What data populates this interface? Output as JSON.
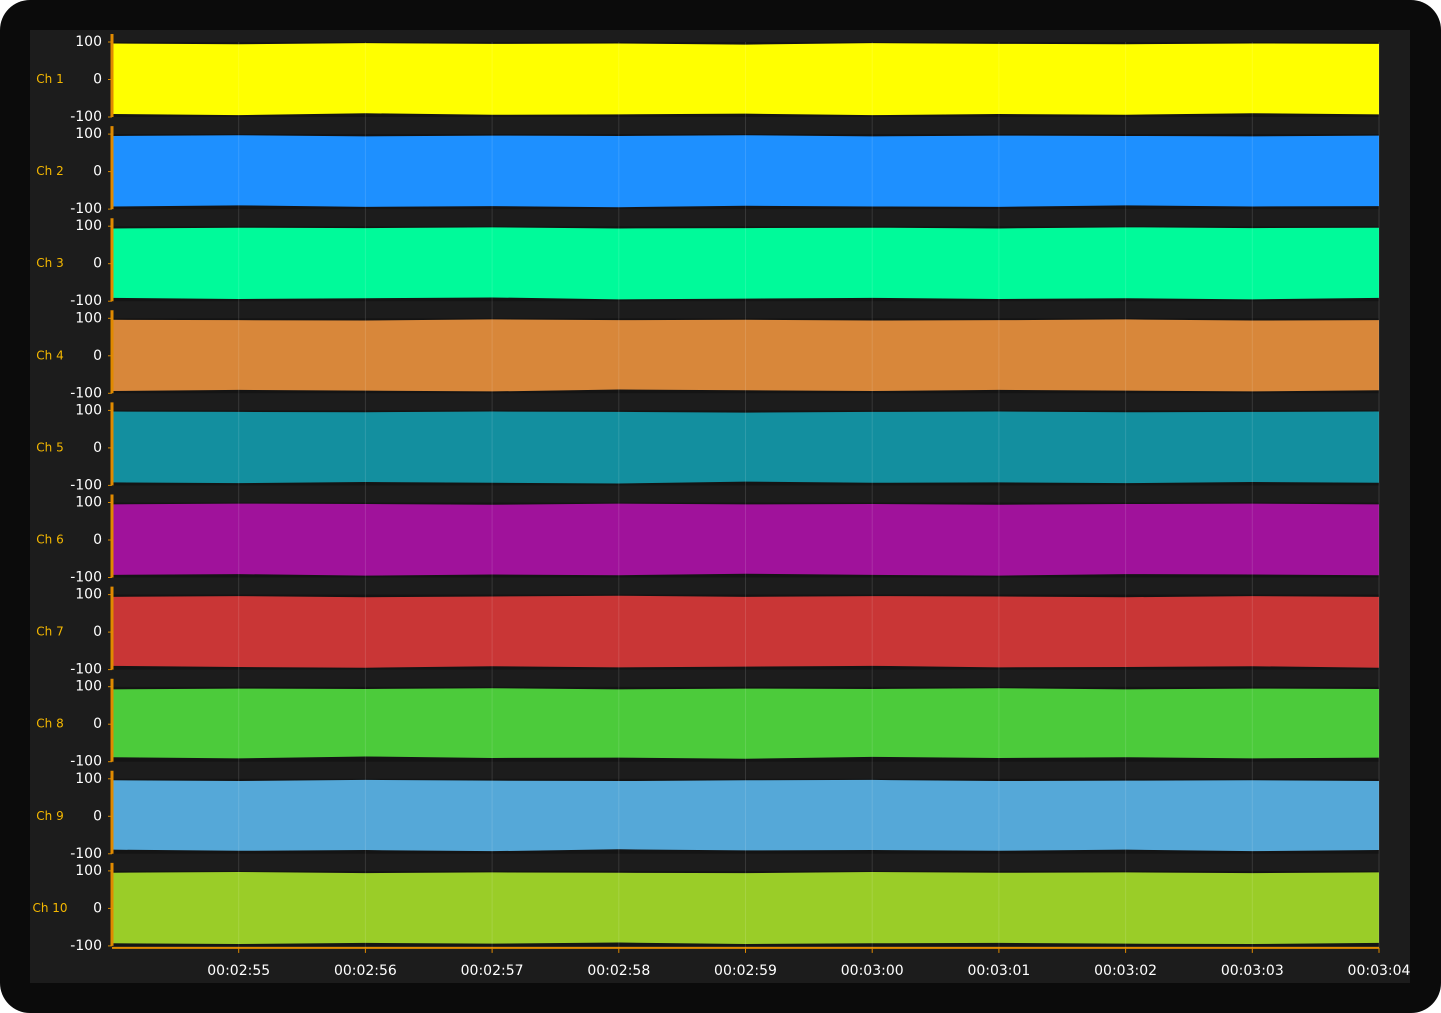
{
  "chart_data": [
    {
      "type": "band",
      "label": "Ch 1",
      "color": "#ffff00",
      "xlim": [
        174,
        184
      ],
      "ylim": [
        -100,
        100
      ],
      "yticks": [
        -100,
        0,
        100
      ],
      "x": [
        174,
        175,
        176,
        177,
        178,
        179,
        180,
        181,
        182,
        183,
        184
      ],
      "high": [
        96,
        94,
        97,
        95,
        96,
        93,
        97,
        95,
        94,
        96,
        95
      ],
      "low": [
        -92,
        -95,
        -90,
        -94,
        -93,
        -91,
        -95,
        -92,
        -94,
        -90,
        -93
      ]
    },
    {
      "type": "band",
      "label": "Ch 2",
      "color": "#1e90ff",
      "xlim": [
        174,
        184
      ],
      "ylim": [
        -100,
        100
      ],
      "yticks": [
        -100,
        0,
        100
      ],
      "x": [
        174,
        175,
        176,
        177,
        178,
        179,
        180,
        181,
        182,
        183,
        184
      ],
      "high": [
        95,
        97,
        94,
        96,
        95,
        97,
        94,
        96,
        95,
        94,
        96
      ],
      "low": [
        -93,
        -90,
        -94,
        -92,
        -95,
        -91,
        -93,
        -94,
        -90,
        -93,
        -92
      ]
    },
    {
      "type": "band",
      "label": "Ch 3",
      "color": "#00fa9a",
      "xlim": [
        174,
        184
      ],
      "ylim": [
        -100,
        100
      ],
      "yticks": [
        -100,
        0,
        100
      ],
      "x": [
        174,
        175,
        176,
        177,
        178,
        179,
        180,
        181,
        182,
        183,
        184
      ],
      "high": [
        94,
        96,
        95,
        97,
        94,
        95,
        96,
        94,
        97,
        95,
        96
      ],
      "low": [
        -91,
        -94,
        -92,
        -90,
        -95,
        -93,
        -91,
        -94,
        -92,
        -95,
        -91
      ]
    },
    {
      "type": "band",
      "label": "Ch 4",
      "color": "#d8873a",
      "xlim": [
        174,
        184
      ],
      "ylim": [
        -100,
        100
      ],
      "yticks": [
        -100,
        0,
        100
      ],
      "x": [
        174,
        175,
        176,
        177,
        178,
        179,
        180,
        181,
        182,
        183,
        184
      ],
      "high": [
        96,
        95,
        94,
        97,
        95,
        96,
        94,
        95,
        97,
        94,
        95
      ],
      "low": [
        -94,
        -91,
        -93,
        -95,
        -90,
        -92,
        -94,
        -91,
        -93,
        -95,
        -92
      ]
    },
    {
      "type": "band",
      "label": "Ch 5",
      "color": "#138f9f",
      "xlim": [
        174,
        184
      ],
      "ylim": [
        -100,
        100
      ],
      "yticks": [
        -100,
        0,
        100
      ],
      "x": [
        174,
        175,
        176,
        177,
        178,
        179,
        180,
        181,
        182,
        183,
        184
      ],
      "high": [
        97,
        96,
        95,
        97,
        96,
        94,
        96,
        97,
        95,
        96,
        97
      ],
      "low": [
        -92,
        -94,
        -91,
        -93,
        -95,
        -90,
        -93,
        -92,
        -94,
        -91,
        -93
      ]
    },
    {
      "type": "band",
      "label": "Ch 6",
      "color": "#a0129b",
      "xlim": [
        174,
        184
      ],
      "ylim": [
        -100,
        100
      ],
      "yticks": [
        -100,
        0,
        100
      ],
      "x": [
        174,
        175,
        176,
        177,
        178,
        179,
        180,
        181,
        182,
        183,
        184
      ],
      "high": [
        95,
        97,
        96,
        94,
        97,
        95,
        96,
        94,
        96,
        97,
        95
      ],
      "low": [
        -93,
        -91,
        -95,
        -92,
        -94,
        -90,
        -93,
        -95,
        -91,
        -92,
        -94
      ]
    },
    {
      "type": "band",
      "label": "Ch 7",
      "color": "#c93636",
      "xlim": [
        174,
        184
      ],
      "ylim": [
        -100,
        100
      ],
      "yticks": [
        -100,
        0,
        100
      ],
      "x": [
        174,
        175,
        176,
        177,
        178,
        179,
        180,
        181,
        182,
        183,
        184
      ],
      "high": [
        94,
        96,
        93,
        95,
        97,
        94,
        96,
        95,
        93,
        96,
        94
      ],
      "low": [
        -90,
        -93,
        -95,
        -91,
        -94,
        -92,
        -90,
        -94,
        -93,
        -91,
        -95
      ]
    },
    {
      "type": "band",
      "label": "Ch 8",
      "color": "#4ccb3b",
      "xlim": [
        174,
        184
      ],
      "ylim": [
        -100,
        100
      ],
      "yticks": [
        -100,
        0,
        100
      ],
      "x": [
        174,
        175,
        176,
        177,
        178,
        179,
        180,
        181,
        182,
        183,
        184
      ],
      "high": [
        93,
        95,
        94,
        96,
        93,
        95,
        94,
        96,
        93,
        95,
        94
      ],
      "low": [
        -88,
        -91,
        -86,
        -90,
        -89,
        -92,
        -87,
        -90,
        -88,
        -91,
        -89
      ]
    },
    {
      "type": "band",
      "label": "Ch 9",
      "color": "#55a8d8",
      "xlim": [
        174,
        184
      ],
      "ylim": [
        -100,
        100
      ],
      "yticks": [
        -100,
        0,
        100
      ],
      "x": [
        174,
        175,
        176,
        177,
        178,
        179,
        180,
        181,
        182,
        183,
        184
      ],
      "high": [
        96,
        94,
        97,
        95,
        94,
        96,
        97,
        94,
        95,
        96,
        94
      ],
      "low": [
        -89,
        -92,
        -90,
        -93,
        -88,
        -91,
        -90,
        -92,
        -89,
        -93,
        -90
      ]
    },
    {
      "type": "band",
      "label": "Ch 10",
      "color": "#9acd28",
      "xlim": [
        174,
        184
      ],
      "ylim": [
        -100,
        100
      ],
      "yticks": [
        -100,
        0,
        100
      ],
      "x": [
        174,
        175,
        176,
        177,
        178,
        179,
        180,
        181,
        182,
        183,
        184
      ],
      "high": [
        95,
        97,
        94,
        96,
        95,
        94,
        97,
        95,
        96,
        94,
        96
      ],
      "low": [
        -93,
        -95,
        -92,
        -94,
        -91,
        -95,
        -93,
        -92,
        -94,
        -95,
        -92
      ],
      "xticks": [
        {
          "value": 175,
          "label": "00:02:55"
        },
        {
          "value": 176,
          "label": "00:02:56"
        },
        {
          "value": 177,
          "label": "00:02:57"
        },
        {
          "value": 178,
          "label": "00:02:58"
        },
        {
          "value": 179,
          "label": "00:02:59"
        },
        {
          "value": 180,
          "label": "00:03:00"
        },
        {
          "value": 181,
          "label": "00:03:01"
        },
        {
          "value": 182,
          "label": "00:03:02"
        },
        {
          "value": 183,
          "label": "00:03:03"
        },
        {
          "value": 184,
          "label": "00:03:04"
        }
      ]
    }
  ]
}
